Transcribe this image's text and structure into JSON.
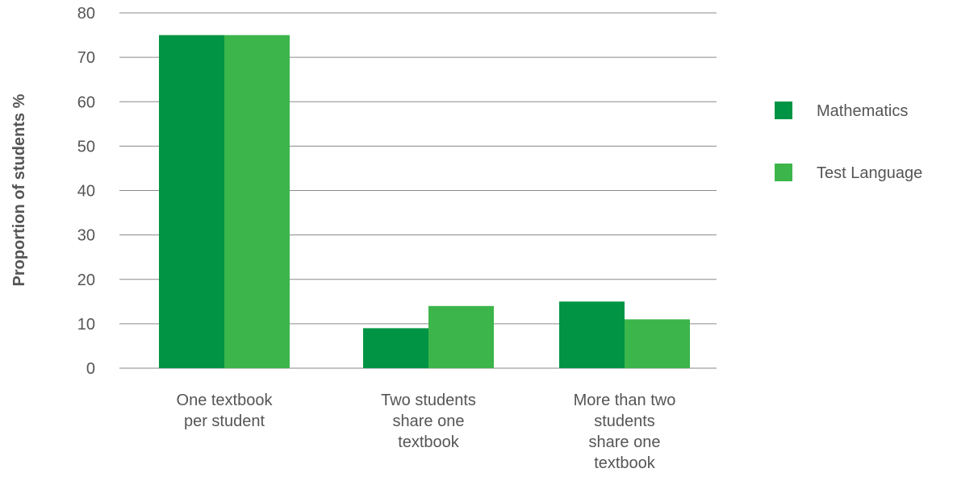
{
  "chart_data": {
    "type": "bar",
    "title": "",
    "xlabel": "",
    "ylabel": "Proportion of students %",
    "categories": [
      [
        "One textbook",
        "per student"
      ],
      [
        "Two students",
        "share one",
        "textbook"
      ],
      [
        "More than two",
        "students",
        "share one",
        "textbook"
      ]
    ],
    "series": [
      {
        "name": "Mathematics",
        "color": "#009444",
        "values": [
          75,
          9,
          15
        ]
      },
      {
        "name": "Test Language",
        "color": "#3cb54a",
        "values": [
          75,
          14,
          11
        ]
      }
    ],
    "ylim": [
      0,
      80
    ],
    "yticks": [
      0,
      10,
      20,
      30,
      40,
      50,
      60,
      70,
      80
    ],
    "grid": true,
    "legend": "right"
  }
}
